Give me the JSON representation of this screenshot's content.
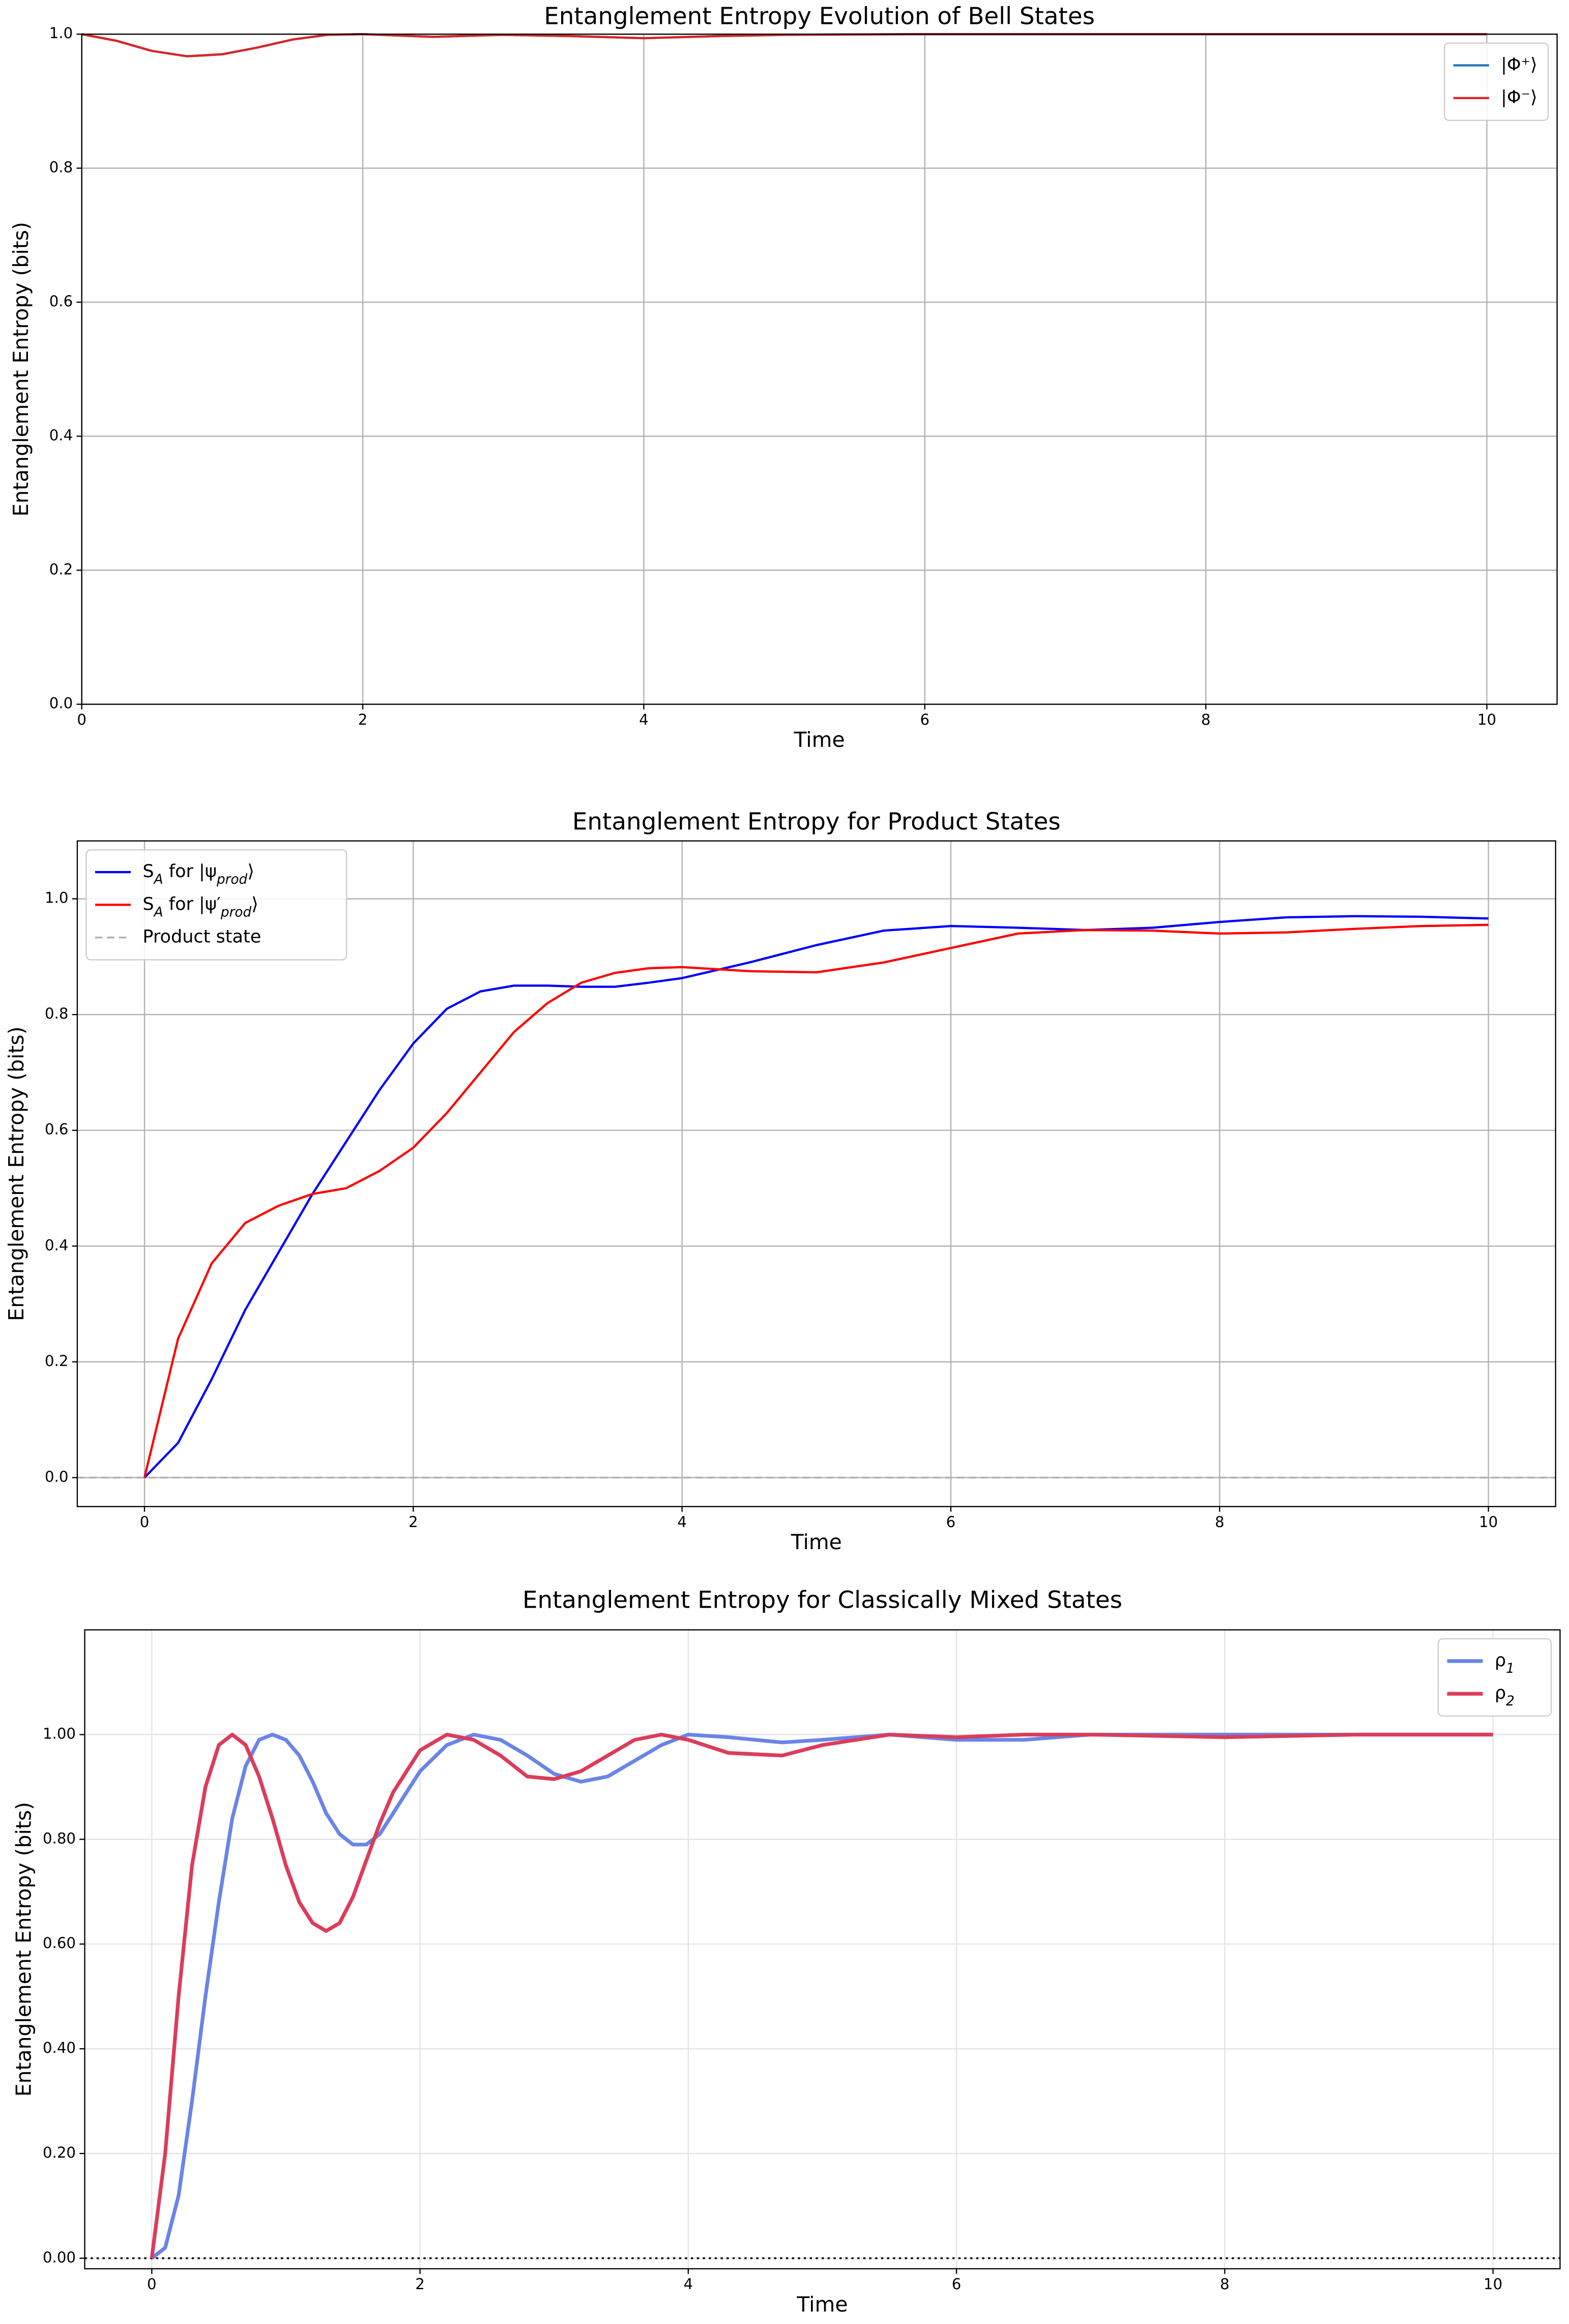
{
  "chart_data": [
    {
      "type": "line",
      "title": "Entanglement Entropy Evolution of Bell States",
      "xlabel": "Time",
      "ylabel": "Entanglement Entropy (bits)",
      "x": [
        0,
        0.25,
        0.5,
        0.75,
        1,
        1.25,
        1.5,
        1.75,
        2,
        2.5,
        3,
        3.5,
        4,
        4.5,
        5,
        6,
        7,
        8,
        9,
        10
      ],
      "series": [
        {
          "name": "|Φ⁺⟩",
          "color": "#1f77b4",
          "values": [
            1.0,
            0.99,
            0.975,
            0.967,
            0.97,
            0.98,
            0.992,
            0.999,
            1.0,
            0.996,
            0.999,
            0.997,
            0.994,
            0.997,
            0.999,
            1.0,
            1.0,
            1.0,
            1.0,
            1.0
          ]
        },
        {
          "name": "|Φ⁻⟩",
          "color": "#d62728",
          "values": [
            1.0,
            0.99,
            0.975,
            0.967,
            0.97,
            0.98,
            0.992,
            0.999,
            1.0,
            0.996,
            0.999,
            0.997,
            0.994,
            0.997,
            0.999,
            1.0,
            1.0,
            1.0,
            1.0,
            1.0
          ]
        }
      ],
      "xlim": [
        0,
        10.5
      ],
      "ylim": [
        0,
        1.0
      ],
      "xticks": [
        0,
        2,
        4,
        6,
        8,
        10
      ],
      "yticks": [
        {
          "value": 0,
          "label": "0.0"
        },
        0.2,
        0.4,
        0.6,
        0.8,
        {
          "value": 1,
          "label": "1.0"
        }
      ],
      "grid": true,
      "grid_color": "#b0b0b0",
      "legend": "upper-right",
      "line_width": 1.5
    },
    {
      "type": "line",
      "title": "Entanglement Entropy for Product States",
      "xlabel": "Time",
      "ylabel": "Entanglement Entropy (bits)",
      "x": [
        0,
        0.25,
        0.5,
        0.75,
        1,
        1.25,
        1.5,
        1.75,
        2,
        2.25,
        2.5,
        2.75,
        3,
        3.25,
        3.5,
        3.75,
        4,
        4.5,
        5,
        5.5,
        6,
        6.5,
        7,
        7.5,
        8,
        8.5,
        9,
        9.5,
        10
      ],
      "series": [
        {
          "name": "S_{A} for |ψ_{prod}⟩",
          "color": "#0000ff",
          "values": [
            0,
            0.06,
            0.17,
            0.29,
            0.39,
            0.49,
            0.58,
            0.67,
            0.75,
            0.81,
            0.84,
            0.85,
            0.85,
            0.848,
            0.848,
            0.855,
            0.863,
            0.89,
            0.92,
            0.945,
            0.953,
            0.95,
            0.946,
            0.95,
            0.96,
            0.968,
            0.97,
            0.969,
            0.966
          ]
        },
        {
          "name": "S_{A} for |ψ′_{prod}⟩",
          "color": "#ff0000",
          "values": [
            0,
            0.24,
            0.37,
            0.44,
            0.47,
            0.49,
            0.5,
            0.53,
            0.57,
            0.63,
            0.7,
            0.77,
            0.82,
            0.855,
            0.872,
            0.88,
            0.882,
            0.875,
            0.873,
            0.89,
            0.915,
            0.94,
            0.946,
            0.945,
            0.94,
            0.942,
            0.948,
            0.953,
            0.955
          ]
        }
      ],
      "hlines": [
        {
          "name": "Product state",
          "value": 0,
          "color": "#b0b0b0",
          "style": "dashed"
        }
      ],
      "xlim": [
        -0.5,
        10.5
      ],
      "ylim": [
        -0.05,
        1.1
      ],
      "xticks": [
        0,
        2,
        4,
        6,
        8,
        10
      ],
      "yticks": [
        {
          "value": 0,
          "label": "0.0"
        },
        0.2,
        0.4,
        0.6,
        0.8,
        {
          "value": 1,
          "label": "1.0"
        }
      ],
      "grid": true,
      "grid_color": "#b0b0b0",
      "legend": "upper-left",
      "line_width": 1.5
    },
    {
      "type": "line",
      "title": "Entanglement Entropy for Classically Mixed States",
      "xlabel": "Time",
      "ylabel": "Entanglement Entropy (bits)",
      "x": [
        0,
        0.1,
        0.2,
        0.3,
        0.4,
        0.5,
        0.6,
        0.7,
        0.8,
        0.9,
        1.0,
        1.1,
        1.2,
        1.3,
        1.4,
        1.5,
        1.6,
        1.7,
        1.8,
        2.0,
        2.2,
        2.4,
        2.6,
        2.8,
        3.0,
        3.2,
        3.4,
        3.6,
        3.8,
        4.0,
        4.3,
        4.7,
        5.0,
        5.5,
        6.0,
        6.5,
        7.0,
        8,
        9,
        10
      ],
      "series": [
        {
          "name": "ρ_{1}",
          "color": "#6a84e8",
          "values": [
            0,
            0.02,
            0.12,
            0.3,
            0.5,
            0.68,
            0.84,
            0.94,
            0.99,
            1.0,
            0.99,
            0.96,
            0.91,
            0.85,
            0.81,
            0.79,
            0.79,
            0.81,
            0.85,
            0.93,
            0.98,
            1.0,
            0.99,
            0.96,
            0.925,
            0.91,
            0.92,
            0.95,
            0.98,
            1.0,
            0.995,
            0.985,
            0.99,
            1.0,
            0.99,
            0.99,
            1.0,
            1.0,
            1.0,
            1.0
          ]
        },
        {
          "name": "ρ_{2}",
          "color": "#dc3c5a",
          "values": [
            0,
            0.2,
            0.5,
            0.75,
            0.9,
            0.98,
            1.0,
            0.98,
            0.92,
            0.84,
            0.75,
            0.68,
            0.64,
            0.625,
            0.64,
            0.69,
            0.76,
            0.83,
            0.89,
            0.97,
            1.0,
            0.99,
            0.96,
            0.92,
            0.915,
            0.93,
            0.96,
            0.99,
            1.0,
            0.99,
            0.965,
            0.96,
            0.98,
            1.0,
            0.995,
            1.0,
            1.0,
            0.995,
            1.0,
            1.0
          ]
        }
      ],
      "hlines": [
        {
          "value": 0,
          "color": "#000000",
          "style": "dotted"
        }
      ],
      "xlim": [
        -0.5,
        10.5
      ],
      "ylim": [
        -0.02,
        1.2
      ],
      "xticks": [
        0,
        2,
        4,
        6,
        8,
        10
      ],
      "yticks": [
        {
          "value": 0,
          "label": "0.00"
        },
        {
          "value": 0.2,
          "label": "0.20"
        },
        {
          "value": 0.4,
          "label": "0.40"
        },
        {
          "value": 0.6,
          "label": "0.60"
        },
        {
          "value": 0.8,
          "label": "0.80"
        },
        {
          "value": 1,
          "label": "1.00"
        }
      ],
      "grid": true,
      "grid_color": "#e3e3e3",
      "legend": "upper-right",
      "line_width": 2.5
    }
  ]
}
